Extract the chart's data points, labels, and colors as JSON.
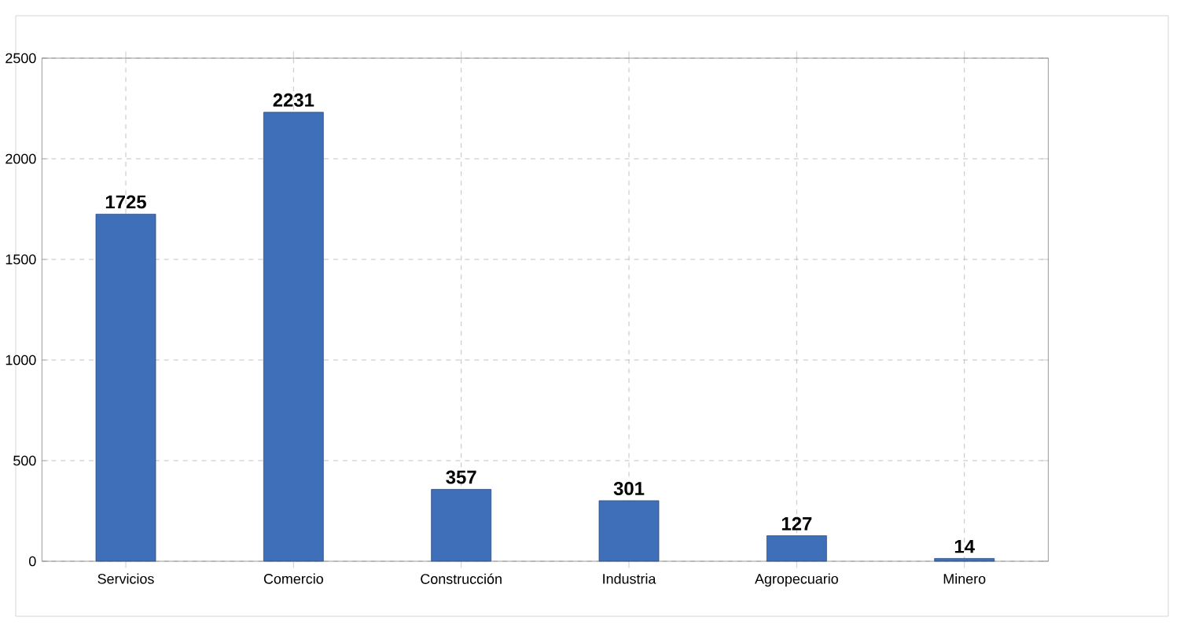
{
  "chart_data": {
    "type": "bar",
    "categories": [
      "Servicios",
      "Comercio",
      "Construcción",
      "Industria",
      "Agropecuario",
      "Minero"
    ],
    "values": [
      1725,
      2231,
      357,
      301,
      127,
      14
    ],
    "color": "#3f6fb8",
    "ylim": [
      0,
      2500
    ],
    "yticks": [
      0,
      500,
      1000,
      1500,
      2000,
      2500
    ],
    "grid": true,
    "data_labels": true
  }
}
